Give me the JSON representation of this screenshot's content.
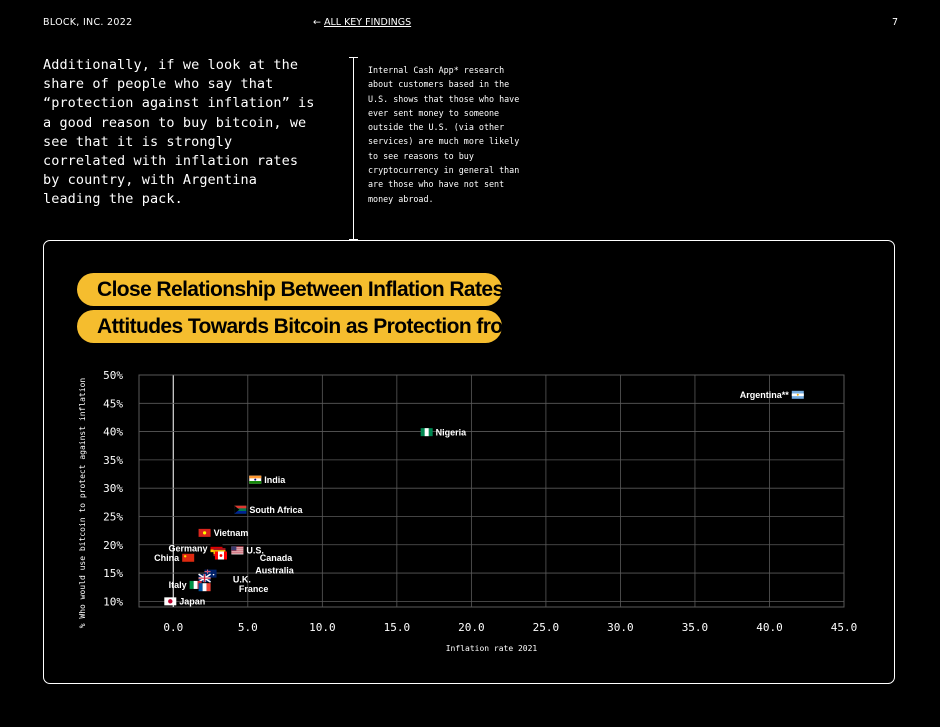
{
  "header": {
    "brand": "BLOCK, INC. 2022",
    "back_link": "ALL KEY FINDINGS",
    "page_number": "7"
  },
  "intro_text": "Additionally, if we look at the share of people who say that “protection against inflation” is a good reason to buy bitcoin, we see that it is strongly correlated with inflation rates by country, with Argentina leading the pack.",
  "sidenote_text": "Internal Cash App* research about customers based in the U.S. shows that those who have ever sent money to someone outside the U.S. (via other services) are much more likely to see reasons to buy cryptocurrency in general than are those who have not sent money abroad.",
  "chart_data": {
    "type": "scatter",
    "title_lines": [
      "Close Relationship Between Inflation Rates and",
      "Attitudes Towards Bitcoin as Protection from It"
    ],
    "xlabel": "Inflation rate 2021",
    "ylabel": "% Who would use bitcoin to protect against inflation",
    "xlim": [
      -2.3,
      45
    ],
    "ylim": [
      9,
      50
    ],
    "x_ticks": [
      "0.0",
      "5.0",
      "10.0",
      "15.0",
      "20.0",
      "25.0",
      "30.0",
      "35.0",
      "40.0",
      "45.0"
    ],
    "x_tick_values": [
      0,
      5,
      10,
      15,
      20,
      25,
      30,
      35,
      40,
      45
    ],
    "y_ticks": [
      "10%",
      "15%",
      "20%",
      "25%",
      "30%",
      "35%",
      "40%",
      "45%",
      "50%"
    ],
    "y_tick_values": [
      10,
      15,
      20,
      25,
      30,
      35,
      40,
      45,
      50
    ],
    "grid": true,
    "points": [
      {
        "label": "Argentina**",
        "x": 41.9,
        "y": 46.5,
        "flag": "argentina",
        "label_side": "left"
      },
      {
        "label": "Nigeria",
        "x": 17.0,
        "y": 39.9,
        "flag": "nigeria",
        "label_side": "right"
      },
      {
        "label": "India",
        "x": 5.5,
        "y": 31.5,
        "flag": "india",
        "label_side": "right"
      },
      {
        "label": "South Africa",
        "x": 4.5,
        "y": 26.2,
        "flag": "south-africa",
        "label_side": "right"
      },
      {
        "label": "Vietnam",
        "x": 2.1,
        "y": 22.1,
        "flag": "vietnam",
        "label_side": "right"
      },
      {
        "label": "Germany",
        "x": 2.9,
        "y": 19.4,
        "flag": "germany",
        "label_side": "left"
      },
      {
        "label": "China",
        "x": 1.0,
        "y": 17.7,
        "flag": "china",
        "label_side": "left"
      },
      {
        "label": "U.S.",
        "x": 4.3,
        "y": 19.0,
        "flag": "usa",
        "label_side": "right"
      },
      {
        "label": "Spain",
        "x": 3.1,
        "y": 18.7,
        "flag": "spain",
        "label_side": "none"
      },
      {
        "label": "Canada",
        "x": 3.2,
        "y": 18.1,
        "flag": "canada",
        "label_side": "none"
      },
      {
        "label": "Australia",
        "x": 2.5,
        "y": 14.9,
        "flag": "australia",
        "label_side": "none"
      },
      {
        "label": "U.K.",
        "x": 2.1,
        "y": 14.1,
        "flag": "uk",
        "label_side": "none"
      },
      {
        "label": "Italy",
        "x": 1.5,
        "y": 12.9,
        "flag": "italy",
        "label_side": "left"
      },
      {
        "label": "France",
        "x": 2.1,
        "y": 12.5,
        "flag": "france",
        "label_side": "none"
      },
      {
        "label": "Japan",
        "x": -0.2,
        "y": 10.0,
        "flag": "japan",
        "label_side": "right"
      }
    ],
    "free_labels": [
      {
        "text": "Canada",
        "x": 5.8,
        "y": 17.7
      },
      {
        "text": "Australia",
        "x": 5.5,
        "y": 15.5
      },
      {
        "text": "U.K.",
        "x": 4.0,
        "y": 13.9
      },
      {
        "text": "France",
        "x": 4.4,
        "y": 12.2
      }
    ]
  },
  "colors": {
    "background": "#000000",
    "title_fill": "#f5bd2e",
    "grid": "#5a5a5a"
  }
}
